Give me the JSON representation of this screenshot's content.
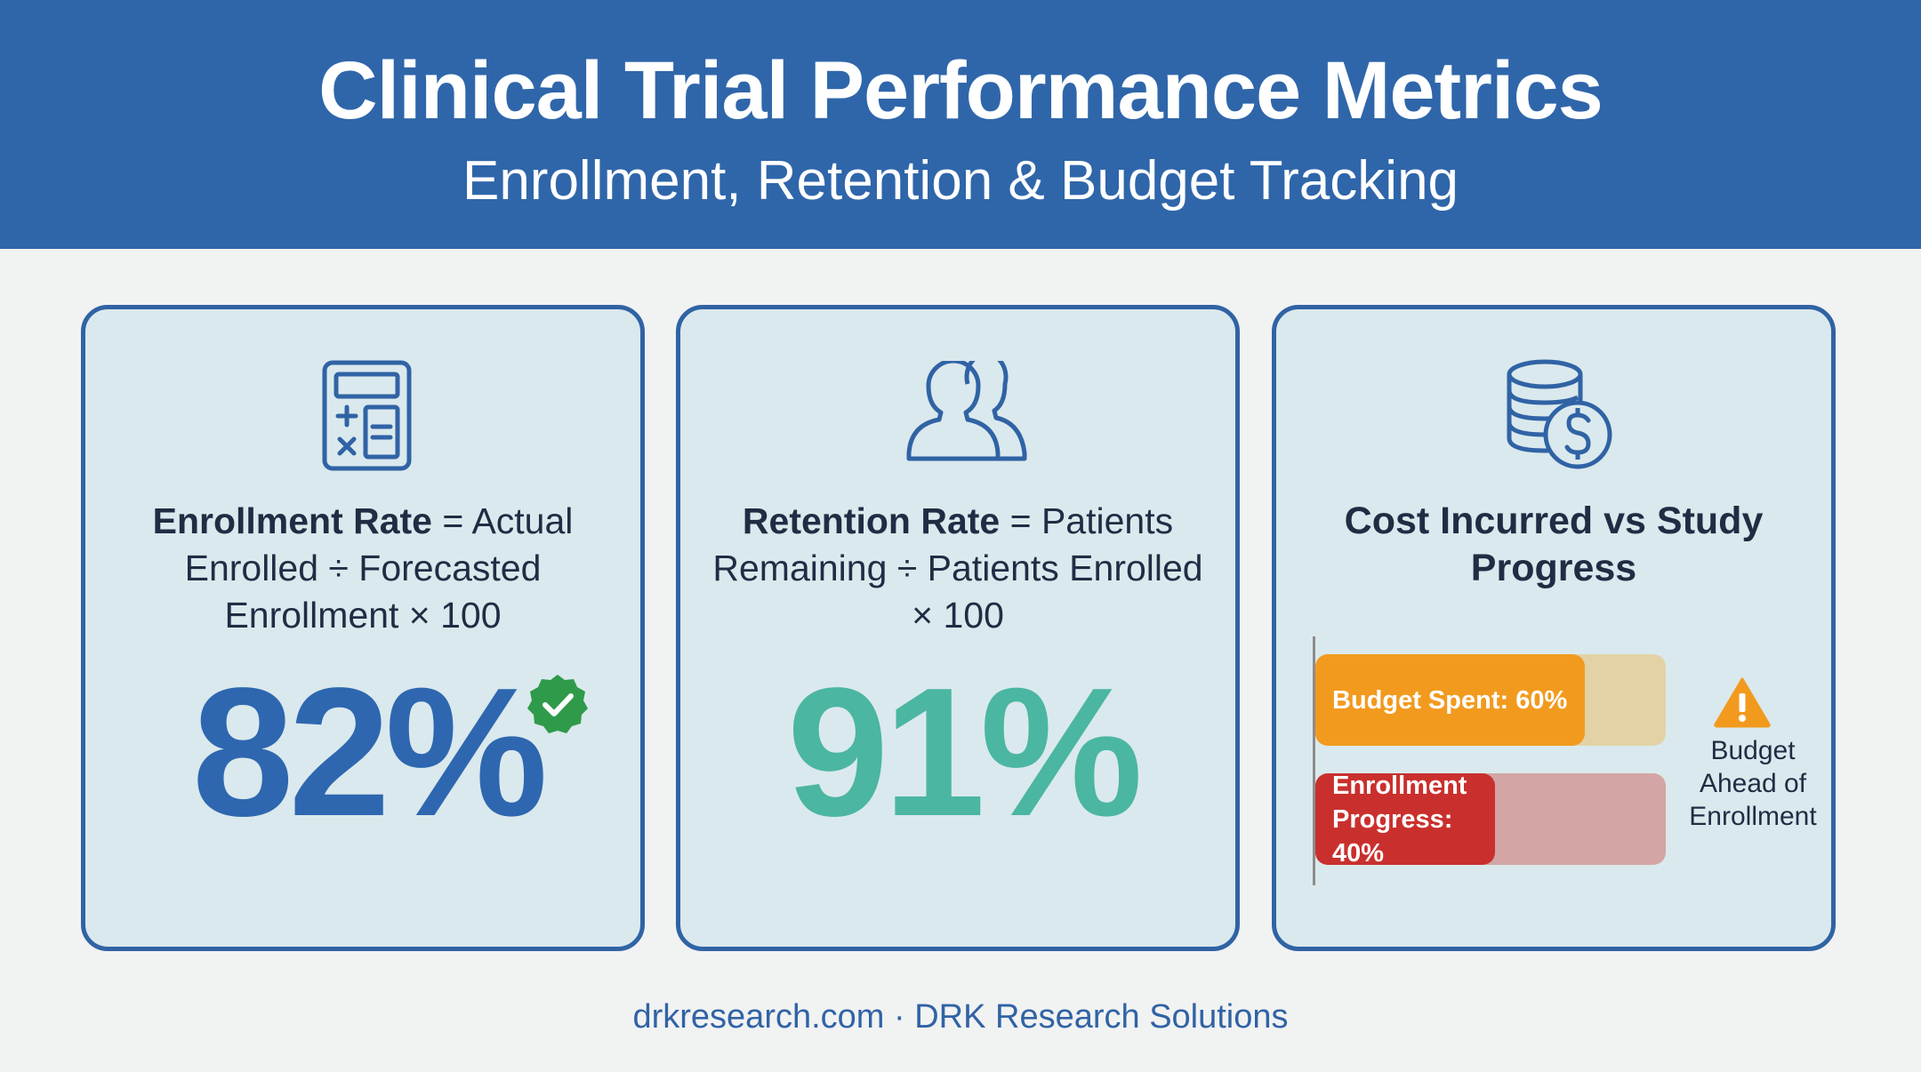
{
  "header": {
    "title": "Clinical Trial Performance Metrics",
    "subtitle": "Enrollment, Retention & Budget Tracking"
  },
  "cards": {
    "enrollment": {
      "icon": "calculator-icon",
      "formula_bold": "Enrollment Rate",
      "formula_rest": " = Actual Enrolled ÷ Forecasted Enrollment × 100",
      "value": "82%",
      "badge_icon": "check-badge-icon",
      "value_color": "#2e67b0"
    },
    "retention": {
      "icon": "users-icon",
      "formula_bold": "Retention Rate",
      "formula_rest": " = Patients Remaining ÷ Patients Enrolled × 100",
      "value": "91%",
      "value_color": "#4bb6a2"
    },
    "cost": {
      "icon": "coins-dollar-icon",
      "title": "Cost Incurred vs Study Progress",
      "bars": [
        {
          "label": "Budget Spent: 60%",
          "value": 0.6,
          "color": "#f29a1e"
        },
        {
          "label": "Enrollment Progress: 40%",
          "value": 0.4,
          "color": "#c9302d"
        }
      ],
      "warning_icon": "warning-icon",
      "warning_text": "Budget Ahead of Enrollment"
    }
  },
  "footer": {
    "text": "drkresearch.com · DRK Research Solutions"
  },
  "colors": {
    "header_bg": "#2f66aa",
    "card_bg": "#dae9ed",
    "card_border": "#3063a5"
  }
}
